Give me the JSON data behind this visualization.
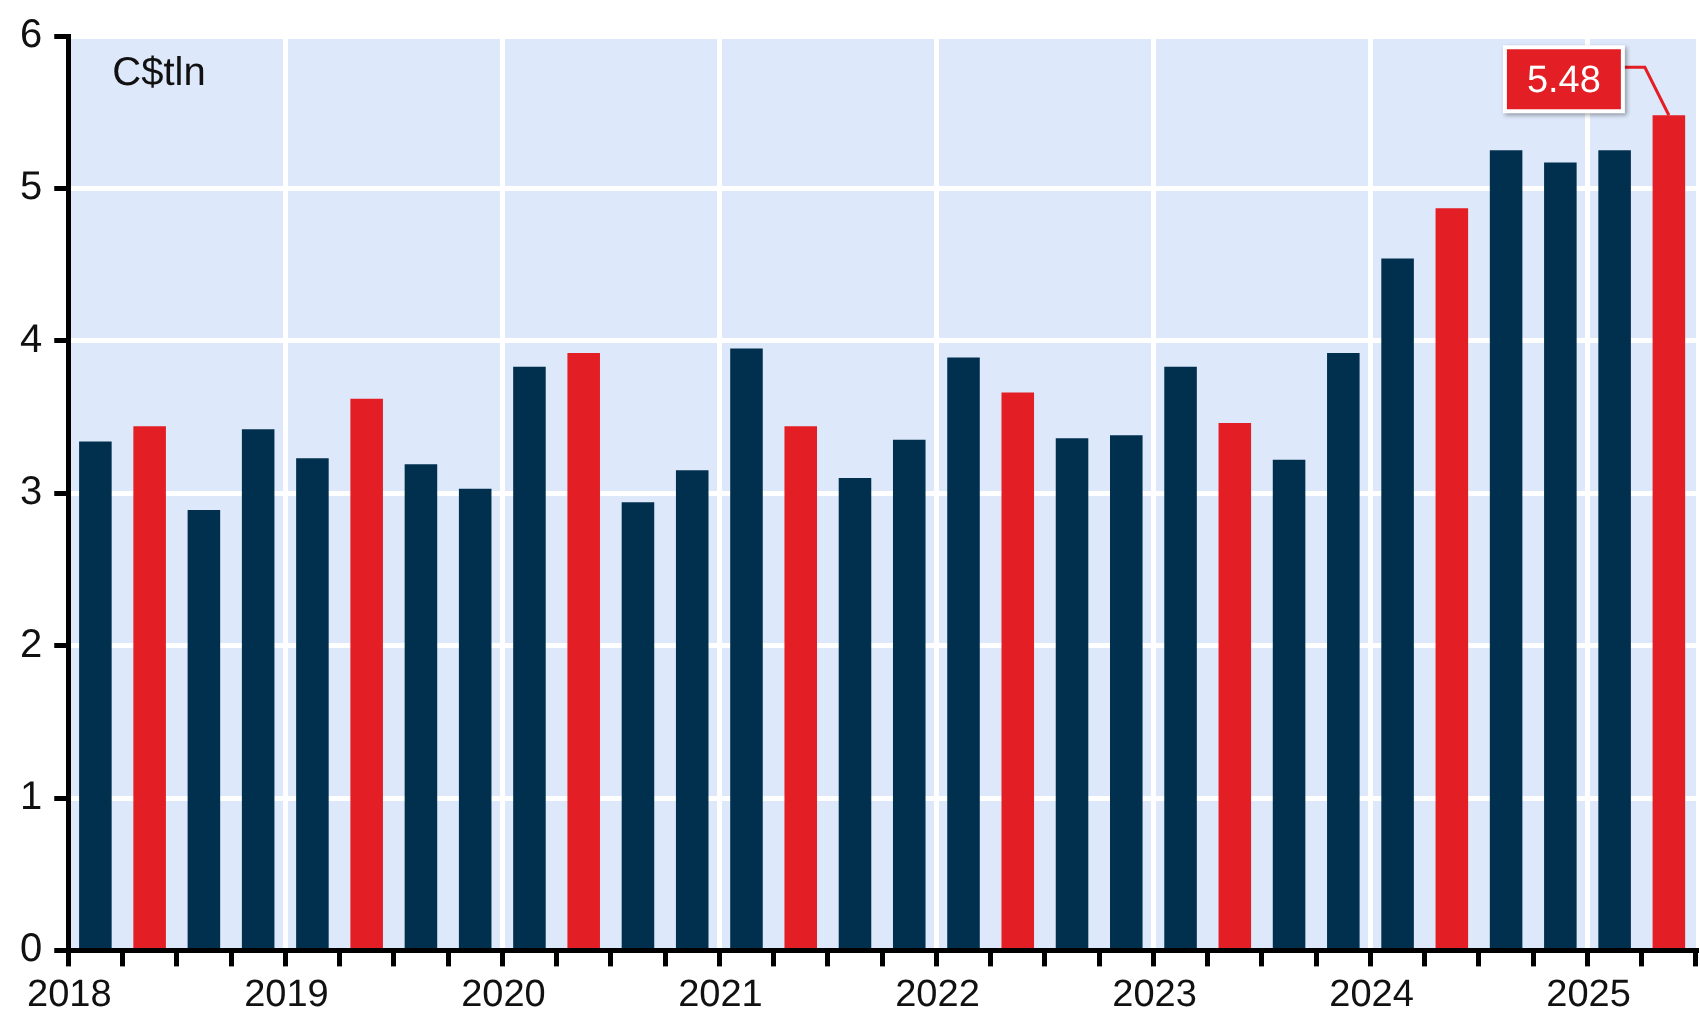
{
  "chart_data": {
    "type": "bar",
    "ylabel": "C$tln",
    "categories": [
      "2018",
      null,
      null,
      null,
      "2019",
      null,
      null,
      null,
      "2020",
      null,
      null,
      null,
      "2021",
      null,
      null,
      null,
      "2022",
      null,
      null,
      null,
      "2023",
      null,
      null,
      null,
      "2024",
      null,
      null,
      null,
      "2025",
      null
    ],
    "series": [
      {
        "values": [
          3.34,
          3.44,
          2.89,
          3.42,
          3.23,
          3.62,
          3.19,
          3.03,
          3.83,
          3.92,
          2.94,
          3.15,
          3.95,
          3.44,
          3.1,
          3.35,
          3.89,
          3.66,
          3.36,
          3.38,
          3.83,
          3.46,
          3.22,
          3.92,
          4.54,
          4.87,
          5.25,
          5.17,
          5.25,
          5.48
        ],
        "colors": [
          "#00304e",
          "#e31e24",
          "#00304e",
          "#00304e",
          "#00304e",
          "#e31e24",
          "#00304e",
          "#00304e",
          "#00304e",
          "#e31e24",
          "#00304e",
          "#00304e",
          "#00304e",
          "#e31e24",
          "#00304e",
          "#00304e",
          "#00304e",
          "#e31e24",
          "#00304e",
          "#00304e",
          "#00304e",
          "#e31e24",
          "#00304e",
          "#00304e",
          "#00304e",
          "#e31e24",
          "#00304e",
          "#00304e",
          "#00304e",
          "#e31e24"
        ],
        "value_labels": [
          null,
          null,
          null,
          null,
          null,
          null,
          null,
          null,
          null,
          null,
          null,
          null,
          null,
          null,
          null,
          null,
          null,
          null,
          null,
          null,
          null,
          null,
          null,
          null,
          null,
          null,
          null,
          null,
          null,
          "5.48"
        ]
      }
    ],
    "ylim": [
      0,
      6
    ],
    "yticks": [
      0,
      1,
      2,
      3,
      4,
      5,
      6
    ],
    "grid": true
  }
}
